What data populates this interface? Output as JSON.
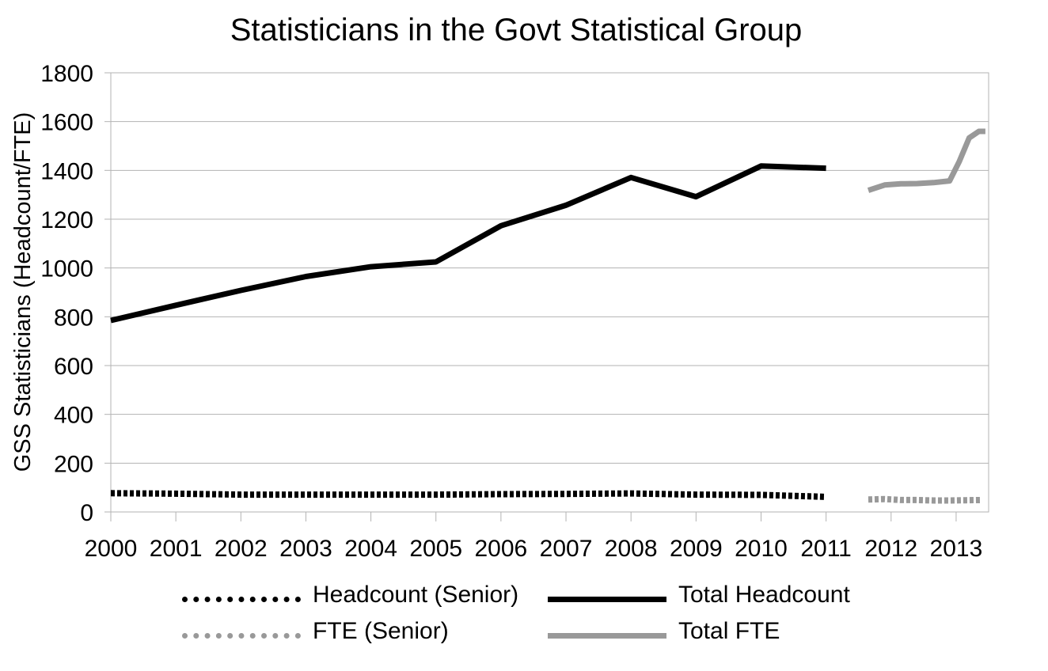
{
  "chart_data": {
    "type": "line",
    "title": "Statisticians in the Govt Statistical Group",
    "ylabel": "GSS Statisticians (Headcount/FTE)",
    "xlabel": "",
    "ylim": [
      0,
      1800
    ],
    "xlim": [
      2000,
      2013.5
    ],
    "yticks": [
      "0",
      "200",
      "400",
      "600",
      "800",
      "1000",
      "1200",
      "1400",
      "1600",
      "1800"
    ],
    "xticks": [
      "2000",
      "2001",
      "2002",
      "2003",
      "2004",
      "2005",
      "2006",
      "2007",
      "2008",
      "2009",
      "2010",
      "2011",
      "2012",
      "2013"
    ],
    "grid": "horizontal",
    "legend_position": "bottom",
    "series": [
      {
        "name": "Headcount (Senior)",
        "color": "#000000",
        "style": "dotted",
        "x": [
          2000,
          2001,
          2002,
          2003,
          2004,
          2005,
          2006,
          2007,
          2008,
          2009,
          2010,
          2011
        ],
        "values": [
          77,
          75,
          71,
          71,
          71,
          71,
          73,
          74,
          76,
          71,
          70,
          62
        ]
      },
      {
        "name": "Total Headcount",
        "color": "#000000",
        "style": "solid",
        "x": [
          2000,
          2001,
          2002,
          2003,
          2004,
          2005,
          2006,
          2007,
          2008,
          2009,
          2010,
          2011
        ],
        "values": [
          785,
          847,
          908,
          965,
          1005,
          1025,
          1173,
          1257,
          1371,
          1292,
          1418,
          1409
        ]
      },
      {
        "name": "FTE (Senior)",
        "color": "#999999",
        "style": "dotted",
        "x": [
          2011.65,
          2011.9,
          2012.15,
          2012.4,
          2012.65,
          2012.9,
          2013.15,
          2013.4
        ],
        "values": [
          51,
          53,
          49,
          49,
          47,
          47,
          48,
          49
        ]
      },
      {
        "name": "Total FTE",
        "color": "#999999",
        "style": "solid",
        "x": [
          2011.65,
          2011.9,
          2012.15,
          2012.4,
          2012.65,
          2012.9,
          2013.05,
          2013.2,
          2013.35,
          2013.45
        ],
        "values": [
          1318,
          1340,
          1345,
          1346,
          1350,
          1357,
          1437,
          1533,
          1560,
          1560
        ]
      }
    ]
  }
}
